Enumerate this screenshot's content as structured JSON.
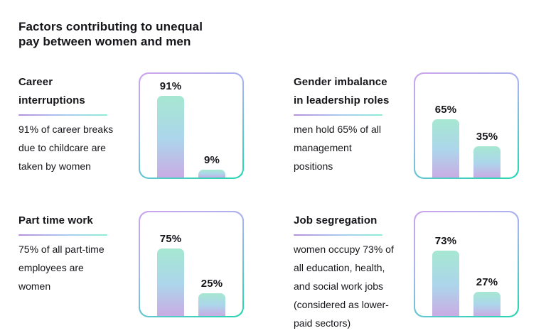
{
  "header": {
    "title_lines": [
      "Factors contributing to unequal",
      "pay between women and men"
    ]
  },
  "colors": {
    "text": "#15151a",
    "bar_top": "#a6e7d1",
    "bar_mid": "#acd6eb",
    "bar_bottom": "#c9ace4",
    "border_start": "#cda4ec",
    "border_mid": "#a2b5f1",
    "border_end": "#2ed5b6",
    "underline_start": "#b78fdb",
    "underline_mid": "#a9cdf0",
    "underline_end": "#8deed6"
  },
  "panels": [
    {
      "title_lines": [
        "Career",
        "interruptions"
      ],
      "description_lines": [
        "91% of career breaks",
        "due to childcare are",
        "taken by women"
      ],
      "chart": {
        "labels": [
          "91%",
          "9%"
        ],
        "values": [
          91,
          9
        ]
      }
    },
    {
      "title_lines": [
        "Gender imbalance",
        "in leadership roles"
      ],
      "description_lines": [
        "men hold 65% of all",
        "management",
        "positions"
      ],
      "chart": {
        "labels": [
          "65%",
          "35%"
        ],
        "values": [
          65,
          35
        ]
      }
    },
    {
      "title_lines": [
        "Part time work"
      ],
      "description_lines": [
        "75% of all part-time",
        "employees are",
        "women"
      ],
      "chart": {
        "labels": [
          "75%",
          "25%"
        ],
        "values": [
          75,
          25
        ]
      }
    },
    {
      "title_lines": [
        "Job segregation"
      ],
      "description_lines": [
        "women occupy 73% of",
        "all education, health,",
        "and social work jobs",
        "(considered as lower-",
        "paid sectors)"
      ],
      "chart": {
        "labels": [
          "73%",
          "27%"
        ],
        "values": [
          73,
          27
        ]
      }
    }
  ],
  "chart_data": [
    {
      "type": "bar",
      "title": "Career interruptions",
      "values": [
        91,
        9
      ],
      "data_labels": [
        "91%",
        "9%"
      ],
      "unit": "%",
      "ylim": [
        0,
        100
      ],
      "grid": false,
      "axes_shown": false,
      "legend": "none"
    },
    {
      "type": "bar",
      "title": "Gender imbalance in leadership roles",
      "values": [
        65,
        35
      ],
      "data_labels": [
        "65%",
        "35%"
      ],
      "unit": "%",
      "ylim": [
        0,
        100
      ],
      "grid": false,
      "axes_shown": false,
      "legend": "none"
    },
    {
      "type": "bar",
      "title": "Part time work",
      "values": [
        75,
        25
      ],
      "data_labels": [
        "75%",
        "25%"
      ],
      "unit": "%",
      "ylim": [
        0,
        100
      ],
      "grid": false,
      "axes_shown": false,
      "legend": "none"
    },
    {
      "type": "bar",
      "title": "Job segregation",
      "values": [
        73,
        27
      ],
      "data_labels": [
        "73%",
        "27%"
      ],
      "unit": "%",
      "ylim": [
        0,
        100
      ],
      "grid": false,
      "axes_shown": false,
      "legend": "none"
    }
  ]
}
